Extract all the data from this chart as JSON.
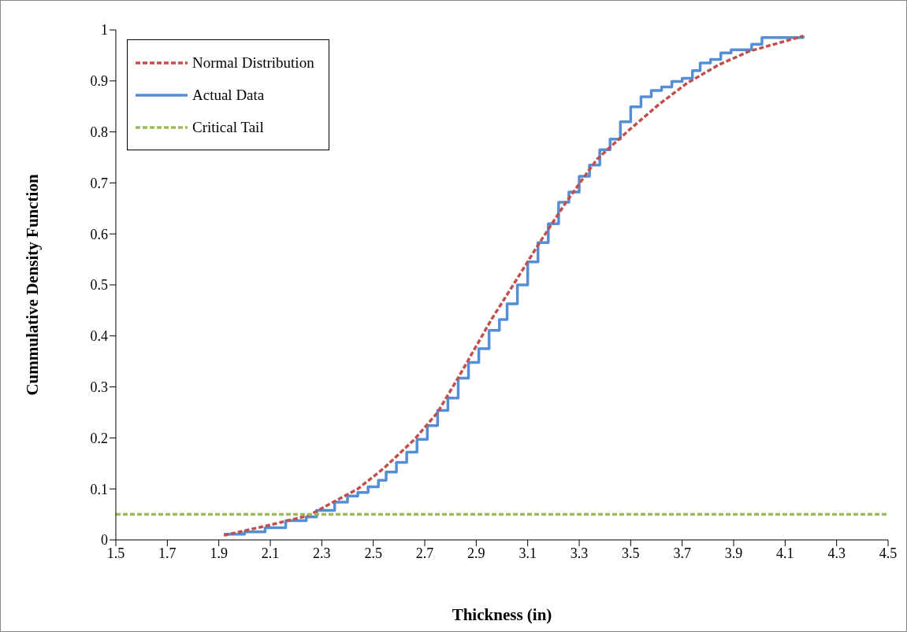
{
  "chart_data": {
    "type": "line",
    "xlabel": "Thickness (in)",
    "ylabel": "Cummulative Density Function",
    "xlim": [
      1.5,
      4.5
    ],
    "xticks": [
      1.5,
      1.7,
      1.9,
      2.1,
      2.3,
      2.5,
      2.7,
      2.9,
      3.1,
      3.3,
      3.5,
      3.7,
      3.9,
      4.1,
      4.3,
      4.5
    ],
    "ylim": [
      0,
      1
    ],
    "yticks": [
      0,
      0.1,
      0.2,
      0.3,
      0.4,
      0.5,
      0.6,
      0.7,
      0.8,
      0.9,
      1
    ],
    "grid": false,
    "legend": "top left",
    "marker": "none",
    "series": [
      {
        "name": "Normal Distribution",
        "color": "#c0504d",
        "line_style": "dashed",
        "x": [
          1.92,
          2.08,
          2.25,
          2.34,
          2.44,
          2.54,
          2.66,
          2.75,
          2.83,
          2.96,
          3.05,
          3.14,
          3.25,
          3.37,
          3.49,
          3.61,
          3.72,
          3.84,
          3.96,
          4.17
        ],
        "values": [
          0.009,
          0.027,
          0.048,
          0.073,
          0.1,
          0.14,
          0.197,
          0.25,
          0.318,
          0.433,
          0.505,
          0.578,
          0.663,
          0.747,
          0.802,
          0.854,
          0.896,
          0.931,
          0.958,
          0.988
        ]
      },
      {
        "name": "Actual Data",
        "color": "#558ed5",
        "type": "step",
        "line_style": "solid",
        "x": [
          1.92,
          2.0,
          2.08,
          2.16,
          2.24,
          2.28,
          2.35,
          2.4,
          2.44,
          2.48,
          2.52,
          2.55,
          2.59,
          2.63,
          2.67,
          2.71,
          2.75,
          2.79,
          2.83,
          2.87,
          2.91,
          2.95,
          2.99,
          3.02,
          3.06,
          3.1,
          3.14,
          3.18,
          3.22,
          3.26,
          3.3,
          3.34,
          3.38,
          3.42,
          3.46,
          3.5,
          3.54,
          3.58,
          3.62,
          3.66,
          3.7,
          3.74,
          3.77,
          3.81,
          3.85,
          3.89,
          3.97,
          4.01,
          4.17
        ],
        "values": [
          0.011,
          0.016,
          0.024,
          0.038,
          0.045,
          0.058,
          0.074,
          0.086,
          0.093,
          0.104,
          0.117,
          0.133,
          0.152,
          0.172,
          0.197,
          0.224,
          0.254,
          0.278,
          0.317,
          0.348,
          0.375,
          0.411,
          0.432,
          0.463,
          0.5,
          0.545,
          0.583,
          0.62,
          0.662,
          0.682,
          0.713,
          0.735,
          0.765,
          0.786,
          0.82,
          0.849,
          0.869,
          0.881,
          0.888,
          0.899,
          0.905,
          0.92,
          0.935,
          0.942,
          0.955,
          0.961,
          0.972,
          0.985,
          0.989
        ]
      },
      {
        "name": "Critical Tail",
        "color": "#9bbb59",
        "line_style": "dashed",
        "x": [
          1.5,
          4.5
        ],
        "values": [
          0.05,
          0.05
        ]
      }
    ]
  }
}
